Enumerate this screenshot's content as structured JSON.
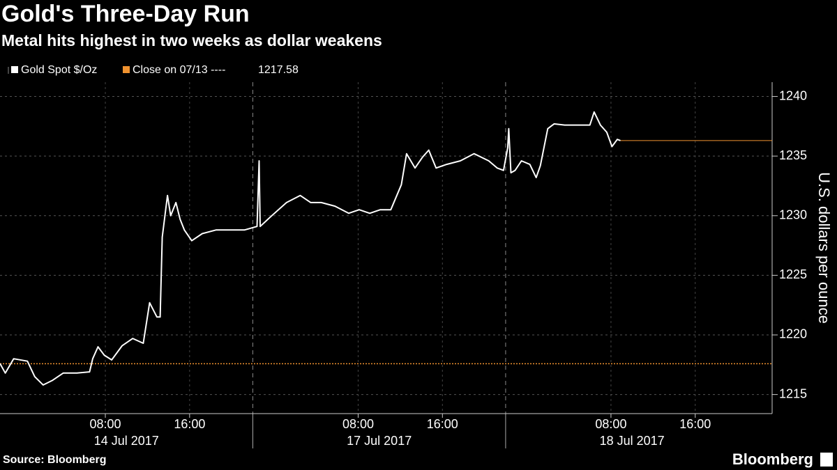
{
  "chart_data": {
    "type": "line",
    "title": "Gold's Three-Day Run",
    "subtitle": "Metal hits highest in two weeks as dollar weakens",
    "y_axis_label": "U.S. dollars per ounce",
    "source": "Source: Bloomberg",
    "brand": "Bloomberg",
    "series": [
      {
        "name": "Gold Spot $/Oz",
        "color": "#ffffff",
        "x": [
          0,
          0.5,
          1.3,
          2.6,
          3.3,
          4.1,
          5.0,
          6.0,
          7.3,
          8.5,
          8.8,
          9.3,
          9.9,
          10.6,
          11.6,
          12.6,
          13.6,
          14.2,
          14.9,
          15.2,
          15.4,
          15.9,
          16.2,
          16.7,
          17.1,
          17.5,
          18.2,
          19.2,
          20.5,
          21.9,
          23.2,
          24.4,
          24.6,
          24.7,
          25.8,
          27.2,
          28.5,
          29.5,
          30.5,
          31.8,
          33.1,
          34.1,
          35.1,
          36.1,
          37.1,
          38.1,
          38.6,
          39.4,
          40.1,
          40.7,
          41.4,
          42.4,
          43.7,
          45.0,
          46.4,
          47.2,
          47.8,
          48.2,
          48.3,
          48.5,
          48.9,
          49.5,
          50.3,
          50.9,
          51.3,
          52.0,
          52.6,
          53.6,
          55.0,
          56.0,
          56.4,
          57.0,
          57.6,
          58.1,
          58.6,
          58.9
        ],
        "values": [
          1217.6,
          1216.8,
          1218.0,
          1217.8,
          1216.5,
          1215.8,
          1216.2,
          1216.8,
          1216.8,
          1216.9,
          1218.0,
          1219.0,
          1218.3,
          1217.9,
          1219.1,
          1219.7,
          1219.3,
          1222.7,
          1221.5,
          1221.5,
          1228.2,
          1231.7,
          1230.0,
          1231.1,
          1229.7,
          1228.8,
          1227.9,
          1228.5,
          1228.8,
          1228.8,
          1228.8,
          1229.1,
          1234.6,
          1229.1,
          1230.0,
          1231.1,
          1231.7,
          1231.1,
          1231.1,
          1230.8,
          1230.2,
          1230.5,
          1230.2,
          1230.5,
          1230.5,
          1232.6,
          1235.2,
          1234.0,
          1234.9,
          1235.5,
          1234.0,
          1234.3,
          1234.6,
          1235.2,
          1234.6,
          1234.0,
          1233.8,
          1235.7,
          1237.3,
          1233.6,
          1233.8,
          1234.6,
          1234.3,
          1233.2,
          1234.2,
          1237.3,
          1237.7,
          1237.6,
          1237.6,
          1237.6,
          1238.7,
          1237.6,
          1237.0,
          1235.8,
          1236.4,
          1236.3
        ]
      }
    ],
    "reference": {
      "label": "Close on 07/13 ----",
      "value": 1217.58,
      "color": "#f0922f"
    },
    "xlim": [
      0,
      73.3
    ],
    "xticks": [
      {
        "value": 10,
        "label": "08:00"
      },
      {
        "value": 18,
        "label": "16:00"
      },
      {
        "value": 34,
        "label": "08:00"
      },
      {
        "value": 42,
        "label": "16:00"
      },
      {
        "value": 58,
        "label": "08:00"
      },
      {
        "value": 66,
        "label": "16:00"
      }
    ],
    "day_labels": [
      {
        "value": 12,
        "label": "14 Jul 2017"
      },
      {
        "value": 36,
        "label": "17 Jul 2017"
      },
      {
        "value": 60,
        "label": "18 Jul 2017"
      }
    ],
    "day_breaks": [
      24,
      48
    ],
    "ylim": [
      1213.4,
      1241.2
    ],
    "yticks": [
      1215,
      1220,
      1225,
      1230,
      1235,
      1240
    ],
    "grid": true
  }
}
